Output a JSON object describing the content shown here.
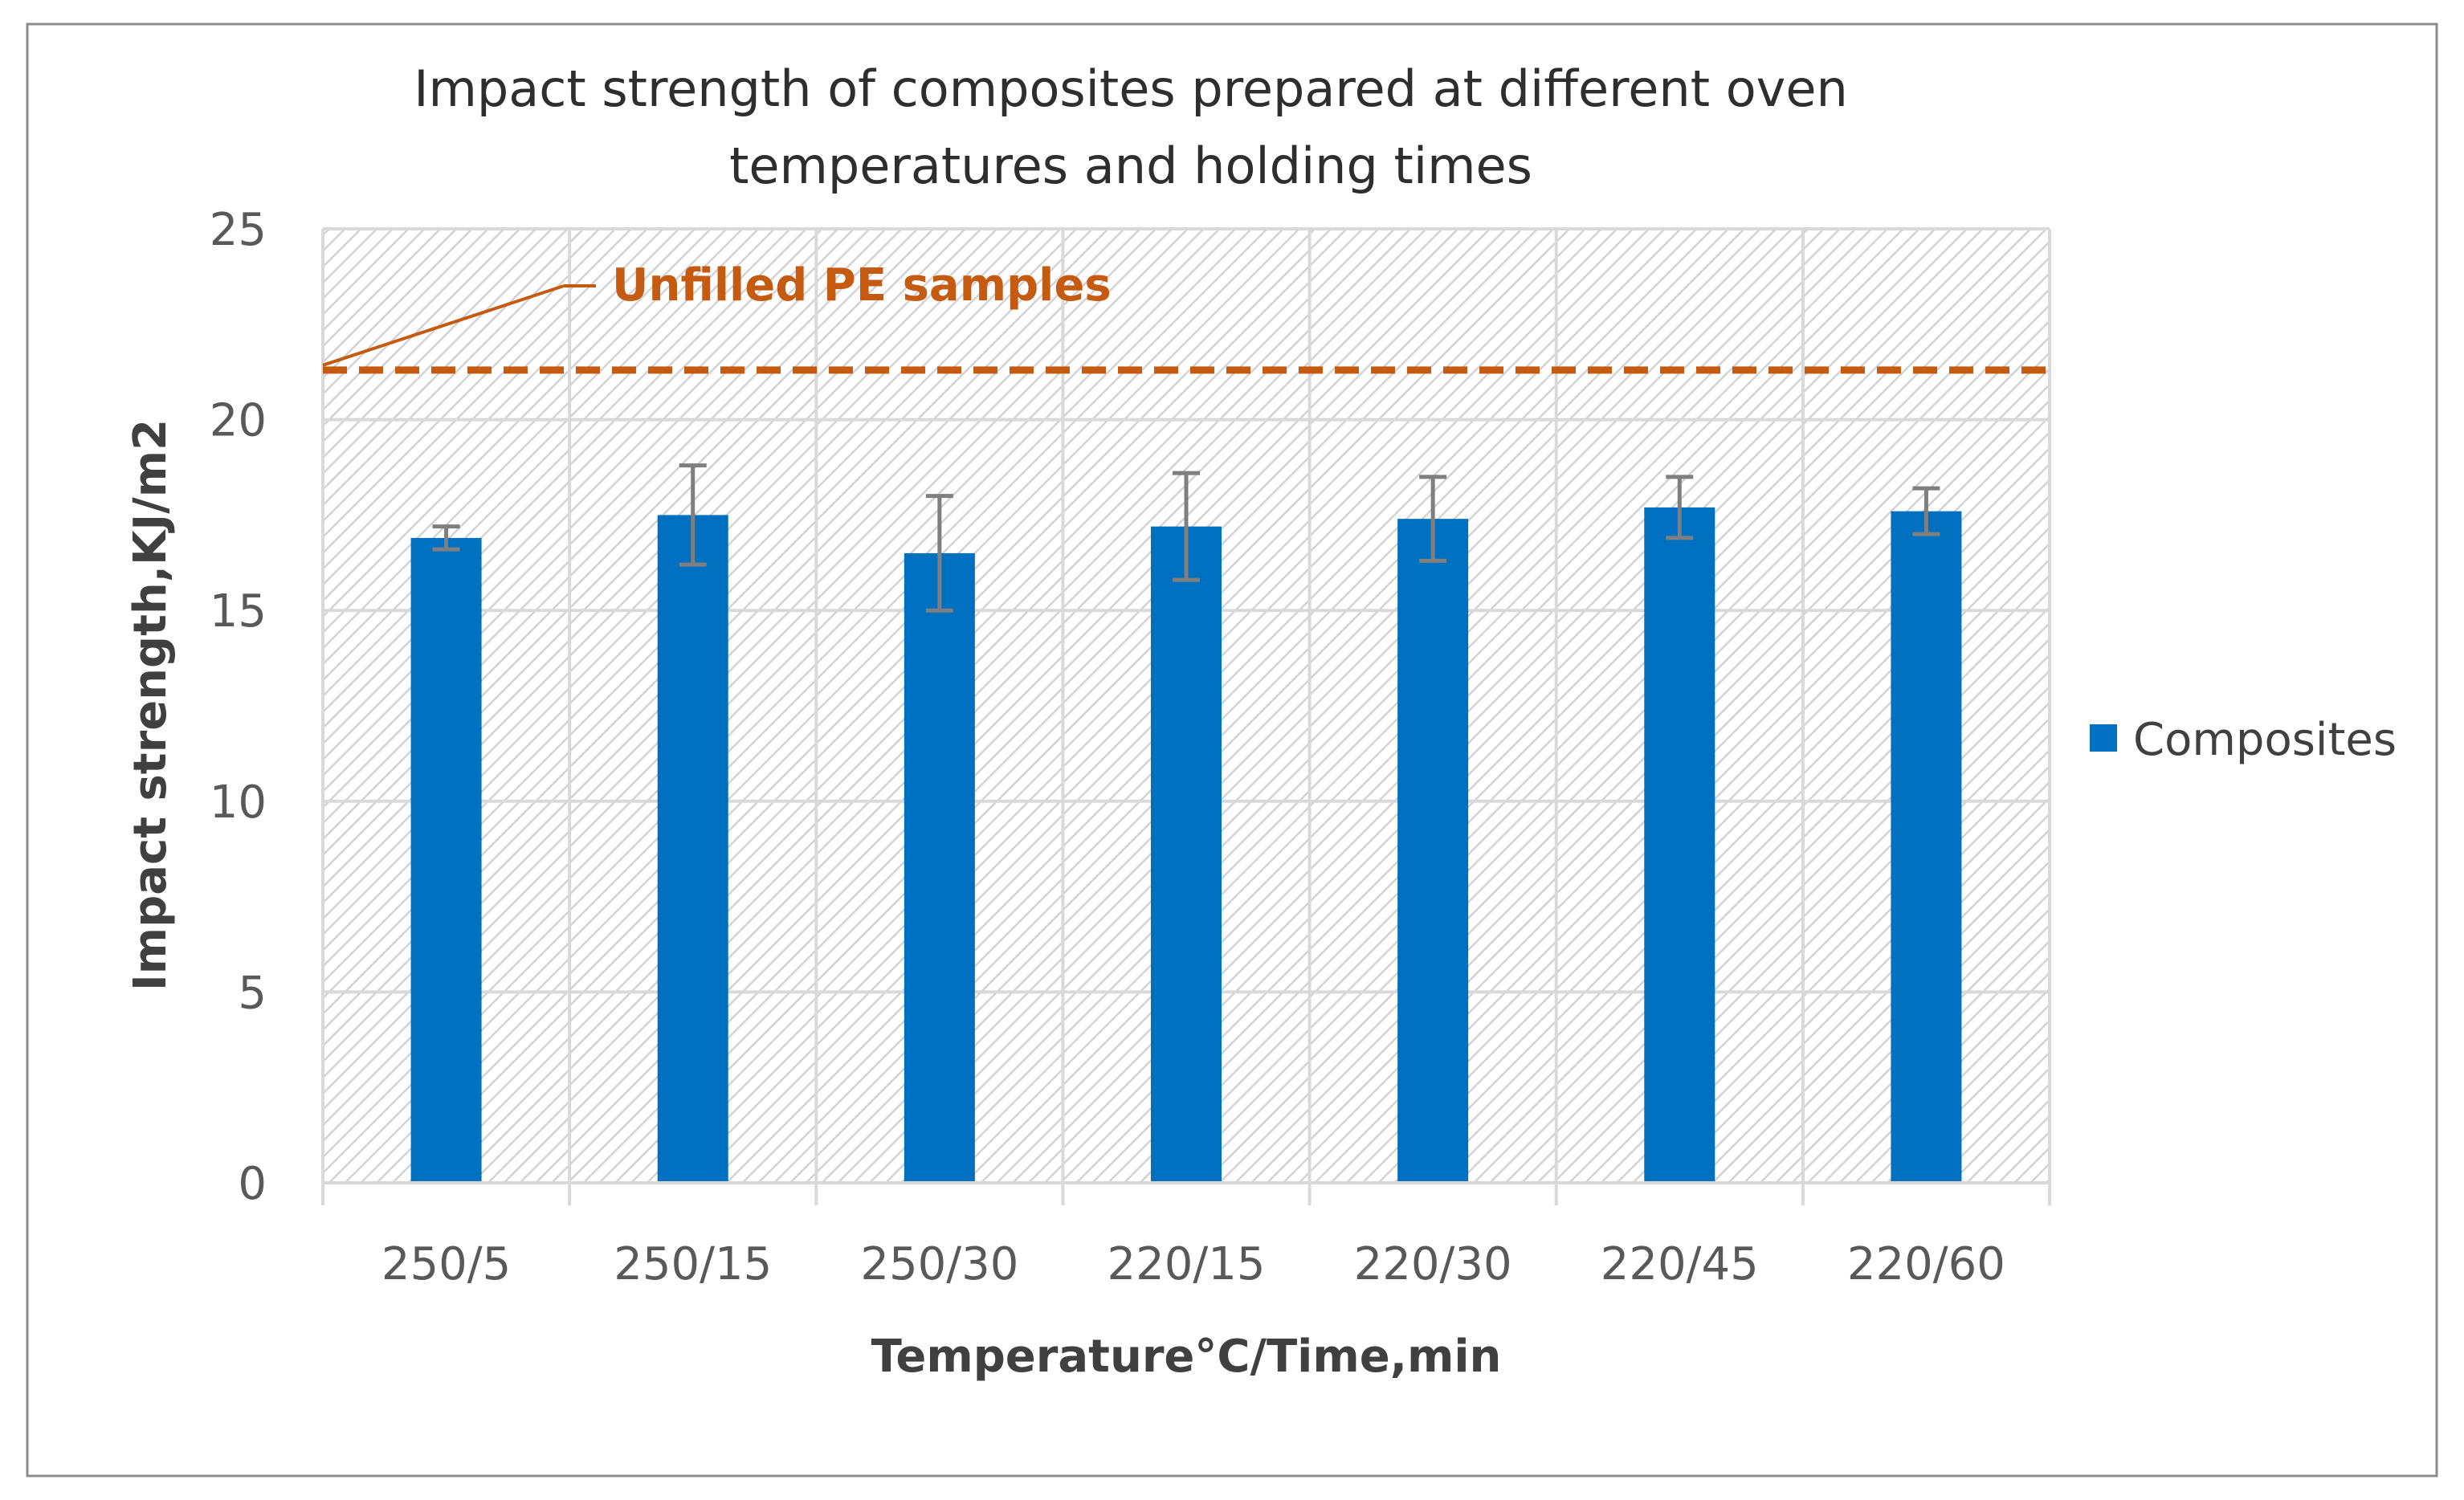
{
  "chart_data": {
    "type": "bar",
    "title": [
      "Impact strength of composites prepared at different oven",
      "temperatures and holding times"
    ],
    "xlabel": "Temperature°C/Time,min",
    "ylabel": "Impact strength,KJ/m2",
    "ylim": [
      0,
      25
    ],
    "yticks": [
      "0",
      "5",
      "10",
      "15",
      "20",
      "25"
    ],
    "categories": [
      "250/5",
      "250/15",
      "250/30",
      "220/15",
      "220/30",
      "220/45",
      "220/60"
    ],
    "series": [
      {
        "name": "Composites",
        "color": "#0070C0",
        "values": [
          16.9,
          17.5,
          16.5,
          17.2,
          17.4,
          17.7,
          17.6
        ],
        "error_low": [
          16.6,
          16.2,
          15.0,
          15.8,
          16.3,
          16.9,
          17.0
        ],
        "error_high": [
          17.2,
          18.8,
          18.0,
          18.6,
          18.5,
          18.5,
          18.2
        ]
      }
    ],
    "reference_line": {
      "label": "Unfilled PE samples",
      "value": 21.3,
      "color": "#C55A11",
      "style": "dashed"
    },
    "legend_position": "right",
    "grid": true
  }
}
